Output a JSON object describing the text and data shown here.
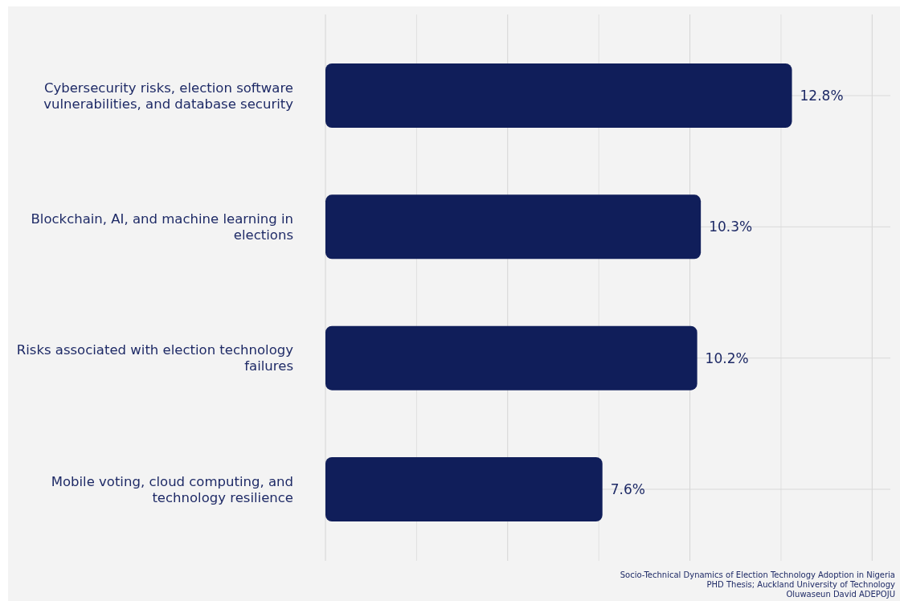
{
  "chart_data": {
    "type": "bar",
    "orientation": "horizontal",
    "categories": [
      "Cybersecurity risks, election software vulnerabilities, and database security",
      "Blockchain, AI, and machine learning in elections",
      "Risks associated with election technology failures",
      "Mobile voting, cloud computing, and technology resilience"
    ],
    "values": [
      12.8,
      10.3,
      10.2,
      7.6
    ],
    "value_labels": [
      "12.8%",
      "10.3%",
      "10.2%",
      "7.6%"
    ],
    "color": "#101e5a",
    "xlim": [
      0,
      15.5
    ],
    "xticks": [
      {
        "value": 0,
        "label": null
      },
      {
        "value": 2.5,
        "label": null
      },
      {
        "value": 5,
        "label": null
      },
      {
        "value": 7.5,
        "label": null
      },
      {
        "value": 10,
        "label": null
      },
      {
        "value": 12.5,
        "label": null
      },
      {
        "value": 15,
        "label": null
      }
    ],
    "grid": true,
    "tick_labels": "y",
    "annotations": [
      "Socio-Technical Dynamics of Election Technology Adoption in Nigeria",
      "PHD Thesis; Auckland University of Technology",
      "Oluwaseun David ADEPOJU"
    ]
  }
}
